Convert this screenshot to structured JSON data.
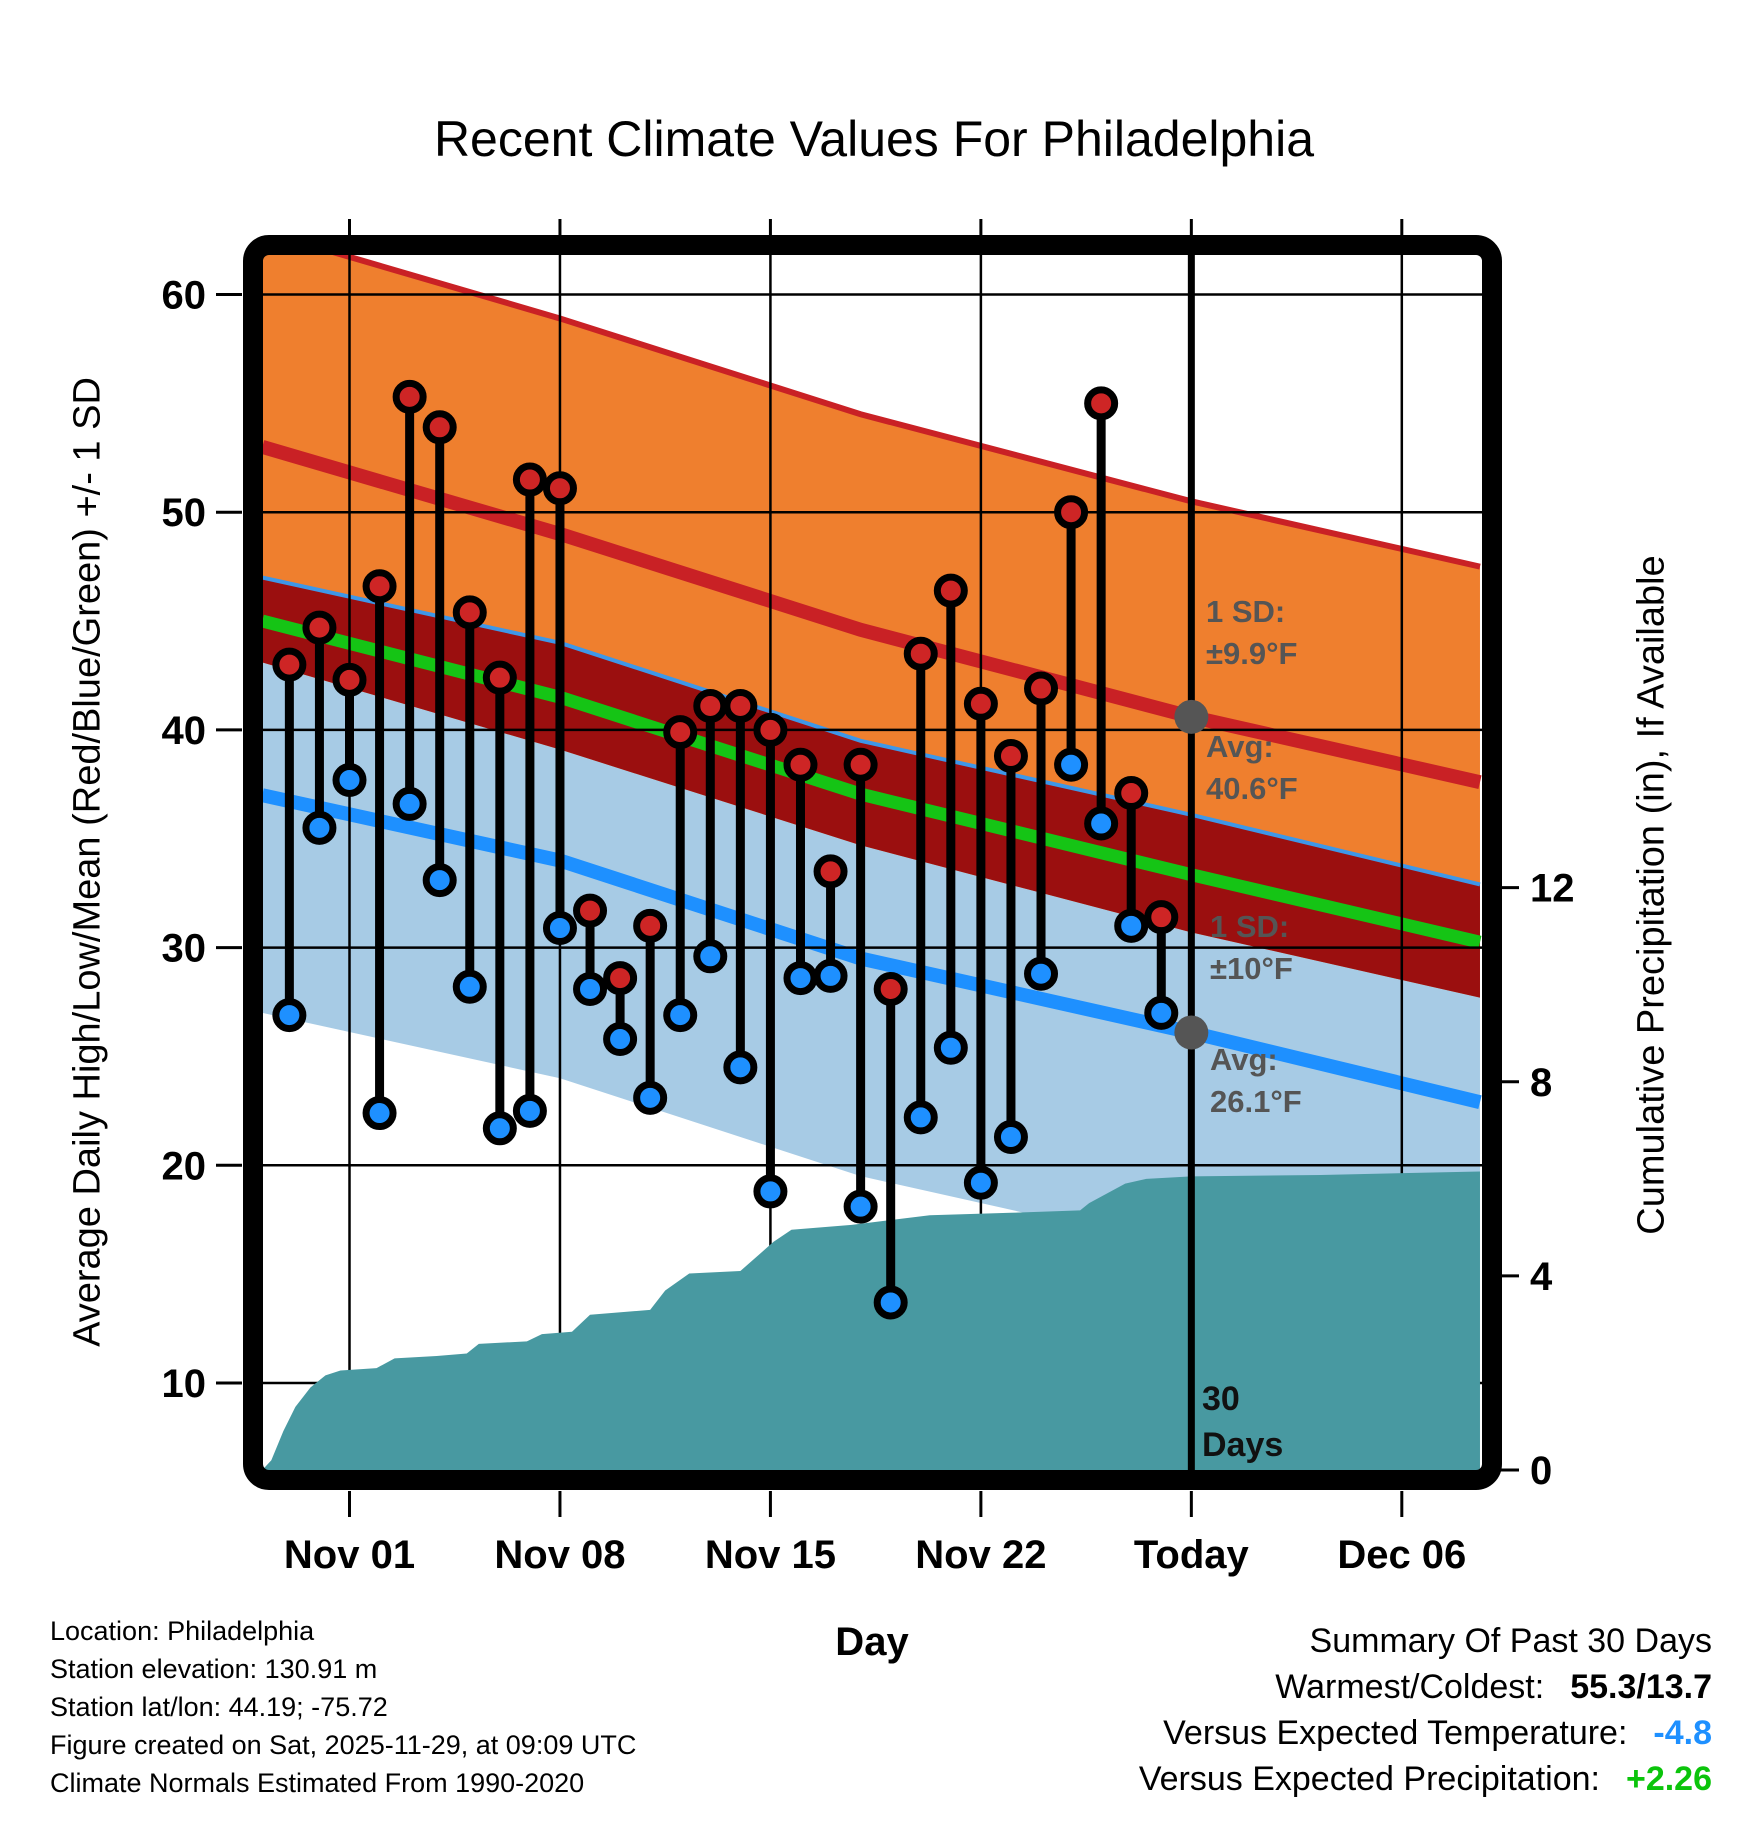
{
  "title": "Recent Climate Values For Philadelphia",
  "axes": {
    "y_left_label": "Average Daily High/Low/Mean (Red/Blue/Green) +/- 1 SD",
    "y_right_label": "Cumulative Precipitation (in), If Available",
    "x_label": "Day",
    "y_left_ticks": [
      60,
      50,
      40,
      30,
      20,
      10
    ],
    "y_right_ticks": [
      12,
      8,
      4,
      0
    ],
    "x_ticks": [
      {
        "label": "Nov 01",
        "day": 1
      },
      {
        "label": "Nov 08",
        "day": 8
      },
      {
        "label": "Nov 15",
        "day": 15
      },
      {
        "label": "Nov 22",
        "day": 22
      },
      {
        "label": "Today",
        "day": 29
      },
      {
        "label": "Dec 06",
        "day": 36
      }
    ]
  },
  "annotations": {
    "sd_high": {
      "line1": "1 SD:",
      "line2": "±9.9°F"
    },
    "avg_high": {
      "line1": "Avg:",
      "line2": "40.6°F"
    },
    "sd_low": {
      "line1": "1 SD:",
      "line2": "±10°F"
    },
    "avg_low": {
      "line1": "Avg:",
      "line2": "26.1°F"
    },
    "period": {
      "line1": "30",
      "line2": "Days"
    }
  },
  "chart_data": {
    "type": "combo",
    "title": "Recent Climate Values For Philadelphia",
    "today_day": 29,
    "x_day_range": [
      -1.9,
      38.6
    ],
    "temperature": {
      "unit": "F",
      "ylim": [
        5,
        62
      ],
      "categories": [
        "Oct 30",
        "Oct 31",
        "Nov 01",
        "Nov 02",
        "Nov 03",
        "Nov 04",
        "Nov 05",
        "Nov 06",
        "Nov 07",
        "Nov 08",
        "Nov 09",
        "Nov 10",
        "Nov 11",
        "Nov 12",
        "Nov 13",
        "Nov 14",
        "Nov 15",
        "Nov 16",
        "Nov 17",
        "Nov 18",
        "Nov 19",
        "Nov 20",
        "Nov 21",
        "Nov 22",
        "Nov 23",
        "Nov 24",
        "Nov 25",
        "Nov 26",
        "Nov 27",
        "Nov 28"
      ],
      "series": [
        {
          "name": "Daily High",
          "values": [
            43.0,
            44.7,
            42.3,
            46.6,
            55.3,
            53.9,
            45.4,
            42.4,
            51.5,
            51.1,
            31.7,
            28.6,
            31.0,
            39.9,
            41.1,
            41.1,
            40.0,
            38.4,
            33.5,
            38.4,
            28.1,
            43.5,
            46.4,
            41.2,
            38.8,
            41.9,
            50.0,
            55.0,
            37.1,
            31.4
          ]
        },
        {
          "name": "Daily Low",
          "values": [
            26.9,
            35.5,
            37.7,
            22.4,
            36.6,
            33.1,
            28.2,
            21.7,
            22.5,
            30.9,
            28.1,
            25.8,
            23.1,
            26.9,
            29.6,
            24.5,
            18.8,
            28.6,
            28.7,
            18.1,
            13.7,
            22.2,
            25.4,
            19.2,
            21.3,
            28.8,
            38.4,
            35.7,
            31.0,
            27.0
          ]
        }
      ],
      "normals": {
        "avg_high_today": 40.6,
        "sd_high": 9.9,
        "avg_low_today": 26.1,
        "sd_low": 10,
        "anchor_days": [
          -1.9,
          8,
          18,
          29,
          38.6
        ],
        "avg_high": [
          53.0,
          49.0,
          44.6,
          40.6,
          37.6
        ],
        "avg_low": [
          37.0,
          34.0,
          29.5,
          26.1,
          22.9
        ]
      }
    },
    "precipitation": {
      "unit": "in",
      "ylim": [
        0,
        25
      ],
      "cumulative_points": [
        [
          -1.9,
          0
        ],
        [
          -1.6,
          0.2
        ],
        [
          -1.2,
          0.8
        ],
        [
          -0.8,
          1.3
        ],
        [
          -0.3,
          1.7
        ],
        [
          0.2,
          1.95
        ],
        [
          0.7,
          2.05
        ],
        [
          1.9,
          2.1
        ],
        [
          2.5,
          2.3
        ],
        [
          3.9,
          2.35
        ],
        [
          4.9,
          2.4
        ],
        [
          5.3,
          2.6
        ],
        [
          6.9,
          2.65
        ],
        [
          7.4,
          2.8
        ],
        [
          8.4,
          2.85
        ],
        [
          9.0,
          3.2
        ],
        [
          11.0,
          3.3
        ],
        [
          11.5,
          3.7
        ],
        [
          12.3,
          4.05
        ],
        [
          14.0,
          4.1
        ],
        [
          15.1,
          4.7
        ],
        [
          15.7,
          4.95
        ],
        [
          17.7,
          5.05
        ],
        [
          20.3,
          5.25
        ],
        [
          23.0,
          5.3
        ],
        [
          25.3,
          5.35
        ],
        [
          25.6,
          5.5
        ],
        [
          26.8,
          5.9
        ],
        [
          27.5,
          6.0
        ],
        [
          29.0,
          6.05
        ],
        [
          33.3,
          6.08
        ],
        [
          38.6,
          6.15
        ]
      ]
    }
  },
  "footer": {
    "lines": [
      "Location: Philadelphia",
      "Station elevation: 130.91 m",
      "Station lat/lon: 44.19; -75.72",
      "Figure created on Sat, 2025-11-29, at 09:09 UTC",
      "Climate Normals Estimated From 1990-2020"
    ]
  },
  "summary": {
    "title": "Summary Of Past 30 Days",
    "rows": [
      {
        "label": "Warmest/Coldest:",
        "value": "55.3/13.7",
        "color": "#000000"
      },
      {
        "label": "Versus Expected Temperature:",
        "value": "-4.8",
        "color": "#1E90FF"
      },
      {
        "label": "Versus Expected Precipitation:",
        "value": "+2.26",
        "color": "#0BC40B"
      }
    ]
  },
  "colors": {
    "orange": "#EF7F2E",
    "red_line": "#C92125",
    "maroon": "#9B0F0F",
    "green": "#15C415",
    "light_blue": "#A7CBE5",
    "blue_line": "#1E90FF",
    "thin_blue": "#3E97E8",
    "teal": "#4899A1",
    "gray": "#555555",
    "dot_red": "#CE2525",
    "dot_blue": "#1E90FF"
  }
}
